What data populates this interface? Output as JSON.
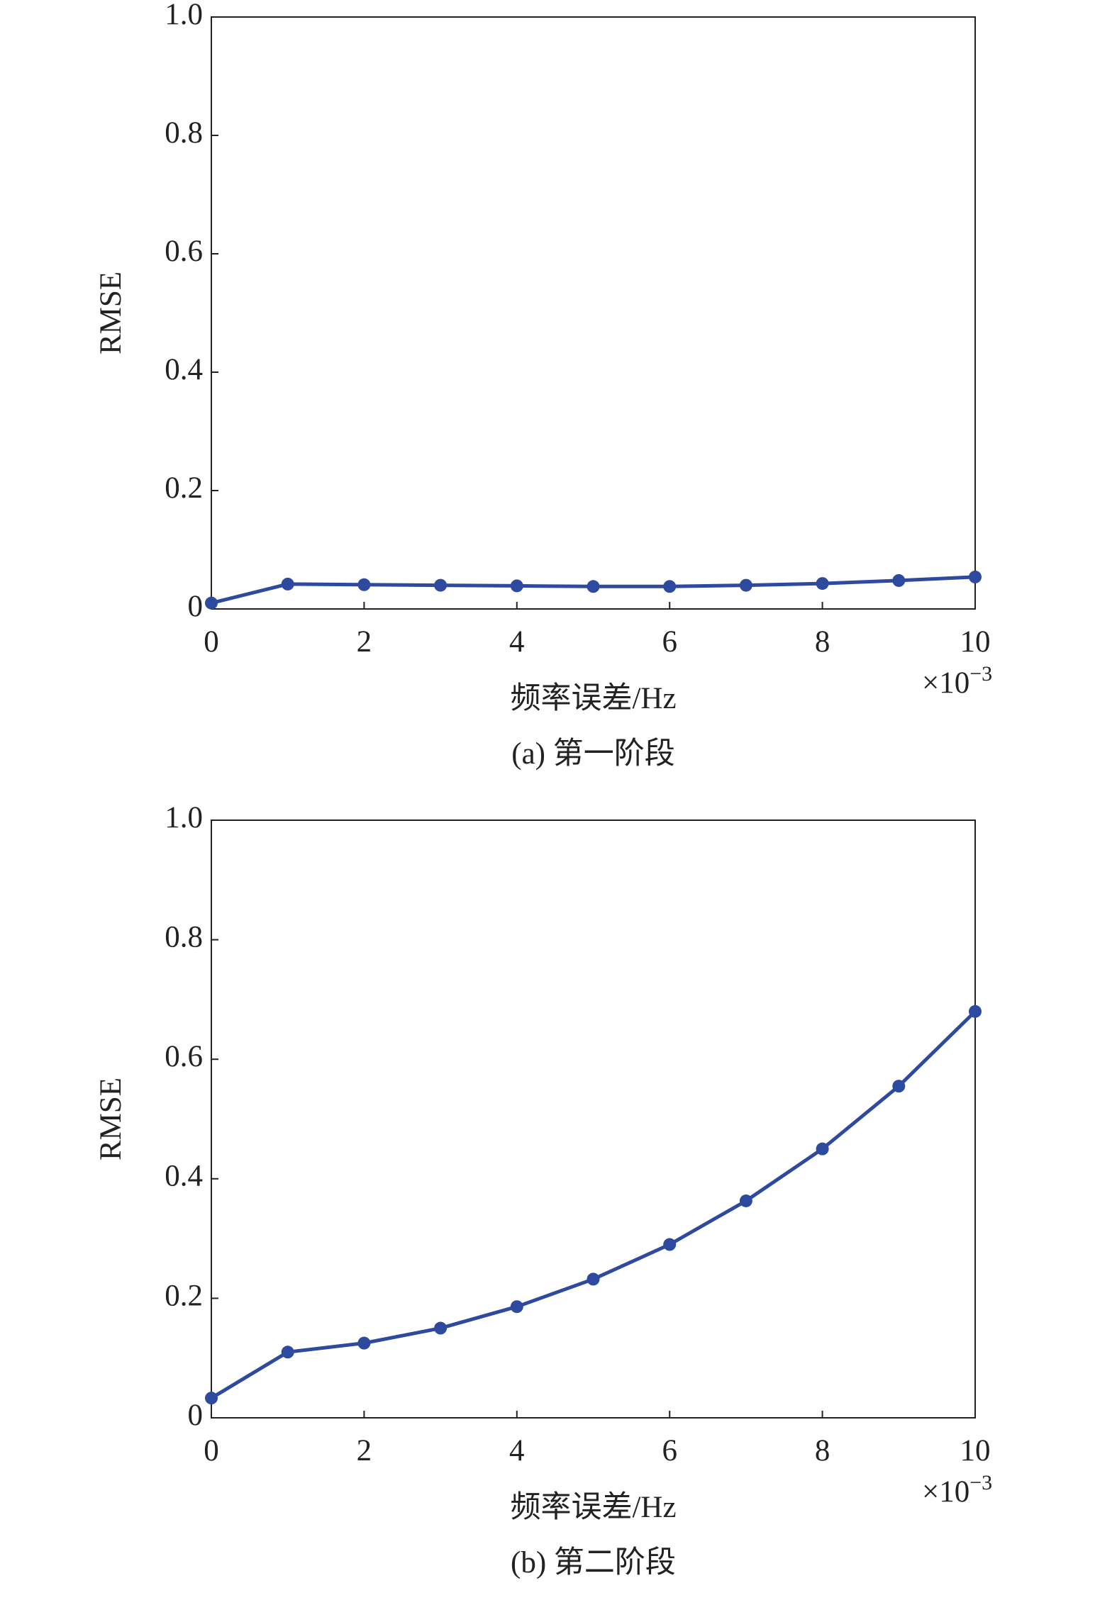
{
  "chart_data": [
    {
      "type": "line",
      "caption": "(a) 第一阶段",
      "xlabel": "频率误差/Hz",
      "ylabel": "RMSE",
      "x_scale": {
        "base": "×10",
        "exponent": "−3"
      },
      "x": [
        0,
        1,
        2,
        3,
        4,
        5,
        6,
        7,
        8,
        9,
        10
      ],
      "series": [
        {
          "color": "#2e4a9e",
          "values": [
            0.01,
            0.042,
            0.041,
            0.04,
            0.039,
            0.038,
            0.038,
            0.04,
            0.043,
            0.048,
            0.054
          ]
        }
      ],
      "xlim": [
        0,
        10
      ],
      "xticks": [
        0,
        2,
        4,
        6,
        8,
        10
      ],
      "ylim": [
        0,
        1
      ],
      "yticks": [
        0,
        0.2,
        0.4,
        0.6,
        0.8,
        {
          "value": 1,
          "label": "1.0"
        }
      ]
    },
    {
      "type": "line",
      "caption": "(b) 第二阶段",
      "xlabel": "频率误差/Hz",
      "ylabel": "RMSE",
      "x_scale": {
        "base": "×10",
        "exponent": "−3"
      },
      "x": [
        0,
        1,
        2,
        3,
        4,
        5,
        6,
        7,
        8,
        9,
        10
      ],
      "series": [
        {
          "color": "#2e4a9e",
          "values": [
            0.033,
            0.11,
            0.125,
            0.15,
            0.186,
            0.232,
            0.29,
            0.363,
            0.45,
            0.555,
            0.68
          ]
        }
      ],
      "xlim": [
        0,
        10
      ],
      "xticks": [
        0,
        2,
        4,
        6,
        8,
        10
      ],
      "ylim": [
        0,
        1
      ],
      "yticks": [
        0,
        0.2,
        0.4,
        0.6,
        0.8,
        {
          "value": 1,
          "label": "1.0"
        }
      ]
    }
  ]
}
